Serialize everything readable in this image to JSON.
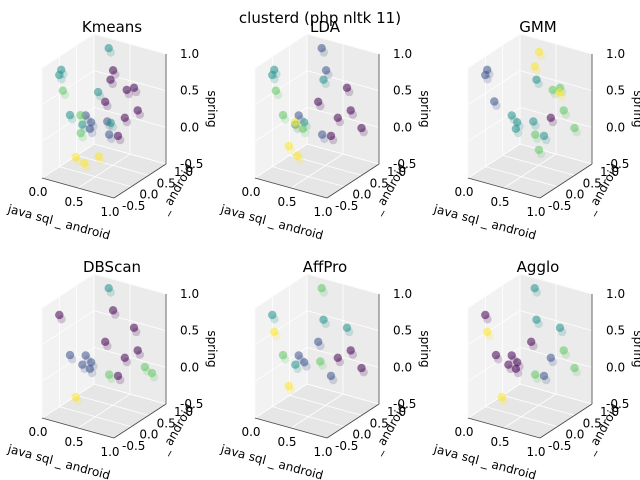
{
  "figure": {
    "suptitle": "clusterd (php nltk 11)"
  },
  "chart_data": [
    {
      "type": "scatter",
      "projection": "3d",
      "title": "Kmeans",
      "xlabel": "java sql _ android",
      "ylabel": "_ android",
      "zlabel": "spring",
      "x_ticks": [
        "0.0",
        "0.5",
        "1.0"
      ],
      "y_ticks": [
        "-0.5",
        "0.0",
        "0.5",
        "1.0"
      ],
      "z_ticks": [
        "-0.5",
        "0.0",
        "0.5",
        "1.0"
      ],
      "colors": [
        "#440154",
        "#3b528b",
        "#21918c",
        "#5ec962",
        "#fde725"
      ],
      "series": [
        {
          "cluster": 0,
          "color": "#440154",
          "points": [
            [
              0.3,
              0.7,
              0.25
            ],
            [
              0.62,
              0.6,
              0.15
            ],
            [
              0.35,
              0.75,
              0.55
            ],
            [
              0.4,
              0.72,
              0.7
            ],
            [
              0.7,
              0.7,
              0.55
            ],
            [
              0.55,
              0.8,
              0.45
            ],
            [
              0.8,
              0.6,
              0.3
            ],
            [
              0.55,
              0.55,
              -0.1
            ]
          ]
        },
        {
          "cluster": 1,
          "color": "#3b528b",
          "points": [
            [
              0.15,
              0.45,
              0.1
            ],
            [
              0.25,
              0.4,
              0.05
            ],
            [
              0.28,
              0.3,
              0.0
            ],
            [
              0.5,
              0.4,
              -0.05
            ],
            [
              0.45,
              0.45,
              0.1
            ]
          ]
        },
        {
          "cluster": 2,
          "color": "#21918c",
          "points": [
            [
              0.0,
              0.0,
              0.75
            ],
            [
              0.05,
              -0.05,
              0.85
            ],
            [
              0.1,
              0.1,
              0.2
            ],
            [
              0.2,
              0.25,
              0.05
            ],
            [
              0.45,
              0.55,
              0.05
            ],
            [
              0.3,
              0.8,
              0.95
            ],
            [
              0.25,
              0.6,
              0.4
            ]
          ]
        },
        {
          "cluster": 3,
          "color": "#5ec962",
          "points": [
            [
              0.2,
              0.2,
              -0.05
            ],
            [
              0.15,
              0.3,
              0.15
            ],
            [
              0.05,
              0.0,
              0.55
            ]
          ]
        },
        {
          "cluster": 4,
          "color": "#fde725",
          "points": [
            [
              0.18,
              0.1,
              -0.35
            ],
            [
              0.3,
              0.1,
              -0.4
            ],
            [
              0.45,
              0.2,
              -0.3
            ]
          ]
        }
      ]
    },
    {
      "type": "scatter",
      "projection": "3d",
      "title": "LDA",
      "xlabel": "java sql _ android",
      "ylabel": "_ android",
      "zlabel": "spring",
      "x_ticks": [
        "0.0",
        "0.5",
        "1.0"
      ],
      "y_ticks": [
        "-0.5",
        "0.0",
        "0.5",
        "1.0"
      ],
      "z_ticks": [
        "-0.5",
        "0.0",
        "0.5",
        "1.0"
      ],
      "colors": [
        "#440154",
        "#3b528b",
        "#21918c",
        "#5ec962",
        "#fde725"
      ],
      "series": [
        {
          "cluster": 0,
          "color": "#440154",
          "points": [
            [
              0.3,
              0.7,
              0.25
            ],
            [
              0.62,
              0.6,
              0.15
            ],
            [
              0.7,
              0.7,
              0.55
            ],
            [
              0.8,
              0.6,
              0.3
            ],
            [
              0.55,
              0.55,
              -0.1
            ],
            [
              0.95,
              0.6,
              0.1
            ]
          ]
        },
        {
          "cluster": 1,
          "color": "#3b528b",
          "points": [
            [
              0.15,
              0.45,
              0.1
            ],
            [
              0.5,
              0.4,
              -0.05
            ],
            [
              0.4,
              0.72,
              0.7
            ],
            [
              0.3,
              0.8,
              0.95
            ]
          ]
        },
        {
          "cluster": 2,
          "color": "#21918c",
          "points": [
            [
              0.0,
              0.0,
              0.75
            ],
            [
              0.05,
              -0.05,
              0.85
            ],
            [
              0.25,
              0.4,
              0.05
            ],
            [
              0.35,
              0.75,
              0.55
            ],
            [
              0.2,
              0.25,
              0.05
            ]
          ]
        },
        {
          "cluster": 3,
          "color": "#5ec962",
          "points": [
            [
              0.1,
              0.1,
              0.2
            ],
            [
              0.28,
              0.3,
              0.0
            ],
            [
              0.05,
              0.0,
              0.55
            ]
          ]
        },
        {
          "cluster": 4,
          "color": "#fde725",
          "points": [
            [
              0.18,
              0.1,
              -0.2
            ],
            [
              0.3,
              0.1,
              -0.3
            ],
            [
              0.22,
              0.2,
              0.1
            ]
          ]
        }
      ]
    },
    {
      "type": "scatter",
      "projection": "3d",
      "title": "GMM",
      "xlabel": "java sql _ android",
      "ylabel": "_ android",
      "zlabel": "spring",
      "x_ticks": [
        "0.0",
        "0.5",
        "1.0"
      ],
      "y_ticks": [
        "-0.5",
        "0.0",
        "0.5",
        "1.0"
      ],
      "z_ticks": [
        "-0.5",
        "0.0",
        "0.5",
        "1.0"
      ],
      "colors": [
        "#440154",
        "#3b528b",
        "#21918c",
        "#5ec962",
        "#fde725"
      ],
      "series": [
        {
          "cluster": 0,
          "color": "#440154",
          "points": [
            [
              0.62,
              0.6,
              0.15
            ]
          ]
        },
        {
          "cluster": 1,
          "color": "#3b528b",
          "points": [
            [
              0.0,
              0.0,
              0.75
            ],
            [
              0.05,
              -0.05,
              0.85
            ],
            [
              0.1,
              0.05,
              0.4
            ]
          ]
        },
        {
          "cluster": 2,
          "color": "#21918c",
          "points": [
            [
              0.15,
              0.45,
              0.1
            ],
            [
              0.25,
              0.4,
              0.05
            ],
            [
              0.28,
              0.3,
              0.0
            ],
            [
              0.45,
              0.45,
              0.1
            ],
            [
              0.35,
              0.75,
              0.55
            ],
            [
              0.55,
              0.55,
              -0.1
            ]
          ]
        },
        {
          "cluster": 3,
          "color": "#5ec962",
          "points": [
            [
              0.5,
              0.4,
              -0.05
            ],
            [
              0.6,
              0.3,
              -0.2
            ],
            [
              0.7,
              0.7,
              0.55
            ],
            [
              0.8,
              0.6,
              0.3
            ],
            [
              0.95,
              0.6,
              0.1
            ],
            [
              0.55,
              0.8,
              0.45
            ]
          ]
        },
        {
          "cluster": 4,
          "color": "#fde725",
          "points": [
            [
              0.4,
              0.72,
              0.95
            ],
            [
              0.3,
              0.8,
              0.7
            ],
            [
              0.6,
              0.9,
              0.4
            ]
          ]
        }
      ]
    },
    {
      "type": "scatter",
      "projection": "3d",
      "title": "DBScan",
      "xlabel": "java sql _ android",
      "ylabel": "_ android",
      "zlabel": "spring",
      "x_ticks": [
        "0.0",
        "0.5",
        "1.0"
      ],
      "y_ticks": [
        "-0.5",
        "0.0",
        "0.5",
        "1.0"
      ],
      "z_ticks": [
        "-0.5",
        "0.0",
        "0.5",
        "1.0"
      ],
      "colors": [
        "#440154",
        "#3b528b",
        "#21918c",
        "#5ec962",
        "#fde725"
      ],
      "series": [
        {
          "cluster": 0,
          "color": "#440154",
          "points": [
            [
              0.0,
              0.0,
              0.75
            ],
            [
              0.3,
              0.7,
              0.25
            ],
            [
              0.62,
              0.6,
              0.15
            ],
            [
              0.7,
              0.7,
              0.55
            ],
            [
              0.55,
              0.55,
              -0.1
            ],
            [
              0.8,
              0.6,
              0.3
            ],
            [
              0.4,
              0.72,
              0.7
            ]
          ]
        },
        {
          "cluster": 1,
          "color": "#3b528b",
          "points": [
            [
              0.15,
              0.45,
              0.1
            ],
            [
              0.25,
              0.4,
              0.05
            ],
            [
              0.28,
              0.3,
              0.0
            ],
            [
              0.2,
              0.25,
              0.05
            ],
            [
              0.1,
              0.1,
              0.2
            ]
          ]
        },
        {
          "cluster": 2,
          "color": "#21918c",
          "points": [
            [
              0.3,
              0.8,
              0.95
            ]
          ]
        },
        {
          "cluster": 3,
          "color": "#5ec962",
          "points": [
            [
              0.5,
              0.4,
              -0.05
            ],
            [
              0.9,
              0.6,
              0.1
            ],
            [
              0.95,
              0.7,
              0.0
            ]
          ]
        },
        {
          "cluster": 4,
          "color": "#fde725",
          "points": [
            [
              0.18,
              0.1,
              -0.35
            ]
          ]
        }
      ]
    },
    {
      "type": "scatter",
      "projection": "3d",
      "title": "AffPro",
      "xlabel": "java sql _ android",
      "ylabel": "_ android",
      "zlabel": "spring",
      "x_ticks": [
        "0.0",
        "0.5",
        "1.0"
      ],
      "y_ticks": [
        "-0.5",
        "0.0",
        "0.5",
        "1.0"
      ],
      "z_ticks": [
        "-0.5",
        "0.0",
        "0.5",
        "1.0"
      ],
      "colors": [
        "#440154",
        "#3b528b",
        "#21918c",
        "#5ec962",
        "#fde725"
      ],
      "series": [
        {
          "cluster": 0,
          "color": "#440154",
          "points": [
            [
              0.62,
              0.6,
              0.15
            ],
            [
              0.8,
              0.6,
              0.3
            ],
            [
              0.95,
              0.6,
              0.1
            ]
          ]
        },
        {
          "cluster": 1,
          "color": "#3b528b",
          "points": [
            [
              0.15,
              0.45,
              0.1
            ],
            [
              0.25,
              0.4,
              0.05
            ],
            [
              0.3,
              0.7,
              0.25
            ],
            [
              0.55,
              0.55,
              -0.1
            ]
          ]
        },
        {
          "cluster": 2,
          "color": "#21918c",
          "points": [
            [
              0.0,
              0.0,
              0.75
            ],
            [
              0.2,
              0.25,
              0.05
            ],
            [
              0.35,
              0.75,
              0.55
            ],
            [
              0.7,
              0.7,
              0.55
            ]
          ]
        },
        {
          "cluster": 3,
          "color": "#5ec962",
          "points": [
            [
              0.3,
              0.8,
              0.95
            ],
            [
              0.45,
              0.45,
              0.1
            ],
            [
              0.1,
              0.1,
              0.2
            ]
          ]
        },
        {
          "cluster": 4,
          "color": "#fde725",
          "points": [
            [
              0.05,
              -0.05,
              0.55
            ],
            [
              0.18,
              0.1,
              -0.2
            ]
          ]
        }
      ]
    },
    {
      "type": "scatter",
      "projection": "3d",
      "title": "Agglo",
      "xlabel": "java sql _ android",
      "ylabel": "_ android",
      "zlabel": "spring",
      "x_ticks": [
        "0.0",
        "0.5",
        "1.0"
      ],
      "y_ticks": [
        "-0.5",
        "0.0",
        "0.5",
        "1.0"
      ],
      "z_ticks": [
        "-0.5",
        "0.0",
        "0.5",
        "1.0"
      ],
      "colors": [
        "#440154",
        "#3b528b",
        "#21918c",
        "#5ec962",
        "#fde725"
      ],
      "series": [
        {
          "cluster": 0,
          "color": "#440154",
          "points": [
            [
              0.15,
              0.45,
              0.1
            ],
            [
              0.25,
              0.4,
              0.05
            ],
            [
              0.28,
              0.3,
              0.0
            ],
            [
              0.2,
              0.25,
              0.05
            ],
            [
              0.3,
              0.7,
              0.25
            ],
            [
              0.1,
              0.1,
              0.2
            ],
            [
              0.0,
              0.0,
              0.75
            ]
          ]
        },
        {
          "cluster": 1,
          "color": "#3b528b",
          "points": [
            [
              0.62,
              0.6,
              0.15
            ],
            [
              0.55,
              0.55,
              -0.1
            ]
          ]
        },
        {
          "cluster": 2,
          "color": "#21918c",
          "points": [
            [
              0.3,
              0.8,
              0.95
            ],
            [
              0.35,
              0.75,
              0.55
            ],
            [
              0.7,
              0.7,
              0.55
            ]
          ]
        },
        {
          "cluster": 3,
          "color": "#5ec962",
          "points": [
            [
              0.8,
              0.6,
              0.3
            ],
            [
              0.95,
              0.6,
              0.1
            ],
            [
              0.5,
              0.4,
              -0.05
            ]
          ]
        },
        {
          "cluster": 4,
          "color": "#fde725",
          "points": [
            [
              0.05,
              -0.05,
              0.55
            ],
            [
              0.18,
              0.1,
              -0.35
            ]
          ]
        }
      ]
    }
  ]
}
